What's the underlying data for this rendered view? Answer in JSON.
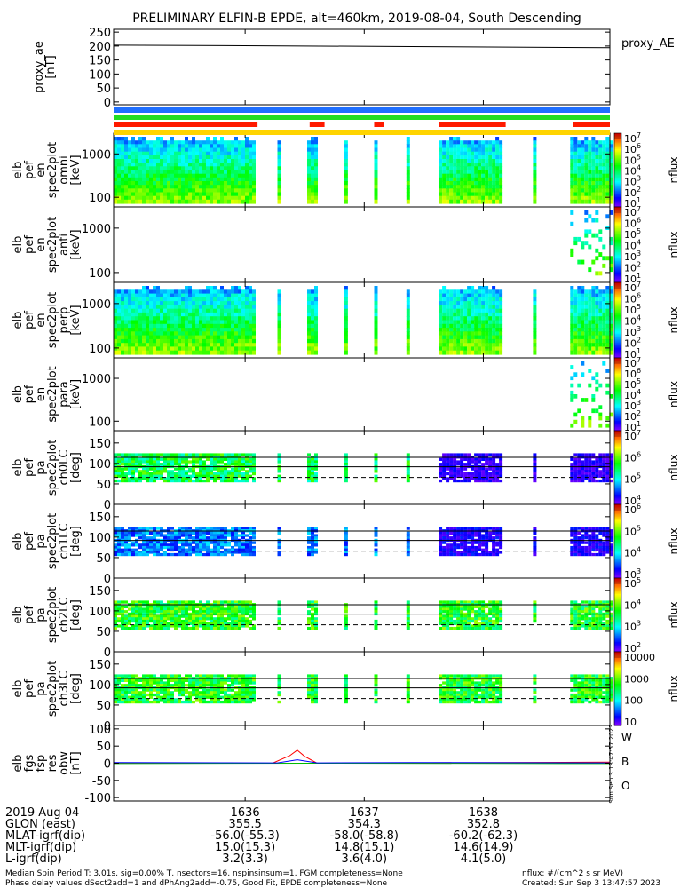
{
  "chart_data": {
    "title": "PRELIMINARY ELFIN-B EPDE, alt=460km, 2019-08-04, South Descending",
    "type": "multi-panel time series",
    "time_axis": {
      "ticks": [
        {
          "label": "1636",
          "t": 0.265
        },
        {
          "label": "1637",
          "t": 0.505
        },
        {
          "label": "1638",
          "t": 0.745
        }
      ],
      "date_label": "2019 Aug 04",
      "rows": [
        {
          "label": "GLON (east)",
          "values": [
            "355.5",
            "354.3",
            "352.8"
          ]
        },
        {
          "label": "MLAT-igrf(dip)",
          "values": [
            "-56.0(-55.3)",
            "-58.0(-58.8)",
            "-60.2(-62.3)"
          ]
        },
        {
          "label": "MLT-igrf(dip)",
          "values": [
            "15.0(15.3)",
            "14.8(15.1)",
            "14.6(14.9)"
          ]
        },
        {
          "label": "L-igrf(dip)",
          "values": [
            "3.2(3.3)",
            "3.6(4.0)",
            "4.1(5.0)"
          ]
        }
      ]
    },
    "panels": [
      {
        "id": "proxy_ae",
        "type": "line",
        "ylabel": "proxy_ae\n[nT]",
        "right_label": "proxy_AE",
        "ylim": [
          -10,
          260
        ],
        "yticks": [
          "250",
          "200",
          "150",
          "100",
          "50",
          "0"
        ],
        "ytick_values": [
          250,
          200,
          150,
          100,
          50,
          0
        ],
        "series": [
          {
            "color": "#000000",
            "x": [
              0,
              0.3,
              0.6,
              1.0
            ],
            "y": [
              203,
              201,
              198,
              194
            ]
          }
        ]
      },
      {
        "id": "omni",
        "type": "spectrogram",
        "ylabel": "elb\npef\nen\nspec2plot\nomni\n[keV]",
        "log": true,
        "ylim": [
          60,
          3000
        ],
        "yticks": [
          "1000",
          "100"
        ],
        "ytick_values": [
          1000,
          100
        ],
        "colorbar": {
          "unit": "nflux",
          "labels": [
            "10^7",
            "10^6",
            "10^5",
            "10^4",
            "10^3",
            "10^2",
            "10^1"
          ]
        }
      },
      {
        "id": "anti",
        "type": "spectrogram",
        "ylabel": "elb\npef\nen\nspec2plot\nanti\n[keV]",
        "log": true,
        "ylim": [
          60,
          3000
        ],
        "yticks": [
          "1000",
          "100"
        ],
        "ytick_values": [
          1000,
          100
        ],
        "colorbar": {
          "unit": "nflux",
          "labels": [
            "10^7",
            "10^6",
            "10^5",
            "10^4",
            "10^3",
            "10^2",
            "10^1"
          ]
        }
      },
      {
        "id": "perp",
        "type": "spectrogram",
        "ylabel": "elb\npef\nen\nspec2plot\nperp\n[keV]",
        "log": true,
        "ylim": [
          60,
          3000
        ],
        "yticks": [
          "1000",
          "100"
        ],
        "ytick_values": [
          1000,
          100
        ],
        "colorbar": {
          "unit": "nflux",
          "labels": [
            "10^7",
            "10^6",
            "10^5",
            "10^4",
            "10^3",
            "10^2",
            "10^1"
          ]
        }
      },
      {
        "id": "para",
        "type": "spectrogram",
        "ylabel": "elb\npef\nen\nspec2plot\npara\n[keV]",
        "log": true,
        "ylim": [
          60,
          3000
        ],
        "yticks": [
          "1000",
          "100"
        ],
        "ytick_values": [
          1000,
          100
        ],
        "colorbar": {
          "unit": "nflux",
          "labels": [
            "10^7",
            "10^6",
            "10^5",
            "10^4",
            "10^3",
            "10^2",
            "10^1"
          ]
        }
      },
      {
        "id": "ch0LC",
        "type": "pitch-angle spectrogram",
        "ylabel": "elb\npef\npa\nspec2plot\nch0LC\n[deg]",
        "ylim": [
          0,
          180
        ],
        "yticks": [
          "150",
          "100",
          "50",
          "0"
        ],
        "ytick_values": [
          150,
          100,
          50,
          0
        ],
        "lines": [
          115,
          92
        ],
        "dashed": 66,
        "colorbar": {
          "unit": "nflux",
          "labels": [
            "10^7",
            "10^6",
            "10^5",
            "10^4"
          ]
        }
      },
      {
        "id": "ch1LC",
        "type": "pitch-angle spectrogram",
        "ylabel": "elb\npef\npa\nspec2plot\nch1LC\n[deg]",
        "ylim": [
          0,
          180
        ],
        "yticks": [
          "150",
          "100",
          "50",
          "0"
        ],
        "ytick_values": [
          150,
          100,
          50,
          0
        ],
        "lines": [
          115,
          92
        ],
        "dashed": 66,
        "colorbar": {
          "unit": "nflux",
          "labels": [
            "10^6",
            "10^5",
            "10^4",
            "10^3"
          ]
        }
      },
      {
        "id": "ch2LC",
        "type": "pitch-angle spectrogram",
        "ylabel": "elb\npef\npa\nspec2plot\nch2LC\n[deg]",
        "ylim": [
          0,
          180
        ],
        "yticks": [
          "150",
          "100",
          "50",
          "0"
        ],
        "ytick_values": [
          150,
          100,
          50,
          0
        ],
        "lines": [
          115,
          92
        ],
        "dashed": 66,
        "colorbar": {
          "unit": "nflux",
          "labels": [
            "10^5",
            "10^4",
            "10^3",
            "10^2"
          ]
        }
      },
      {
        "id": "ch3LC",
        "type": "pitch-angle spectrogram",
        "ylabel": "elb\npef\npa\nspec2plot\nch3LC\n[deg]",
        "ylim": [
          0,
          180
        ],
        "yticks": [
          "150",
          "100",
          "50",
          "0"
        ],
        "ytick_values": [
          150,
          100,
          50,
          0
        ],
        "lines": [
          115,
          92
        ],
        "dashed": 66,
        "colorbar": {
          "unit": "nflux",
          "labels": [
            "10000",
            "1000",
            "100",
            "10"
          ]
        }
      },
      {
        "id": "fgs",
        "type": "line",
        "ylabel": "elb\nfgs\nfsp\nres\nobw\n[nT]",
        "ylim": [
          -110,
          110
        ],
        "yticks": [
          "100",
          "50",
          "0",
          "-50",
          "-100"
        ],
        "ytick_values": [
          100,
          50,
          0,
          -50,
          -100
        ],
        "legend": [
          {
            "label": "W",
            "color": "#ff0000"
          },
          {
            "label": "B",
            "color": "#00bb00"
          },
          {
            "label": "O",
            "color": "#0000ff"
          }
        ],
        "series": [
          {
            "color": "#ff0000",
            "x": [
              0,
              0.32,
              0.355,
              0.37,
              0.385,
              0.41,
              0.6,
              1.0
            ],
            "y": [
              1,
              0,
              22,
              38,
              20,
              0,
              1,
              3
            ]
          },
          {
            "color": "#00bb00",
            "x": [
              0,
              0.4,
              1.0
            ],
            "y": [
              -1,
              0,
              -1
            ]
          },
          {
            "color": "#0000ff",
            "x": [
              0,
              0.33,
              0.37,
              0.41,
              0.6,
              1.0
            ],
            "y": [
              2,
              1,
              10,
              1,
              2,
              1
            ]
          }
        ]
      }
    ],
    "status_bars": [
      {
        "color": "#1f6fff",
        "segments": [
          [
            0,
            1
          ]
        ]
      },
      {
        "color": "#22dd22",
        "segments": [
          [
            0,
            1
          ]
        ]
      },
      {
        "color": "#ff1a00",
        "segments": [
          [
            0,
            0.29
          ],
          [
            0.395,
            0.425
          ],
          [
            0.525,
            0.545
          ],
          [
            0.655,
            0.79
          ],
          [
            0.925,
            1
          ]
        ]
      },
      {
        "color": "#ffd400",
        "segments": [
          [
            0,
            1
          ]
        ]
      }
    ],
    "data_intervals": [
      [
        0,
        0.285
      ],
      [
        0.33,
        0.336
      ],
      [
        0.39,
        0.405
      ],
      [
        0.465,
        0.47
      ],
      [
        0.525,
        0.53
      ],
      [
        0.59,
        0.595
      ],
      [
        0.655,
        0.78
      ],
      [
        0.845,
        0.85
      ],
      [
        0.92,
        1
      ]
    ],
    "side_stamp": "Sun Sep  3 13:47:57 2023"
  },
  "footer": {
    "left1": "Median Spin Period T: 3.01s, sig=0.00% T, nsectors=16, nspinsinsum=1, FGM completeness=None",
    "left2": "Phase delay values dSect2add=1 and dPhAng2add=-0.75, Good Fit, EPDE completeness=None",
    "right1": "nflux: #/(cm^2 s sr MeV)",
    "right2": "Created: Sun Sep  3 13:47:57 2023"
  }
}
